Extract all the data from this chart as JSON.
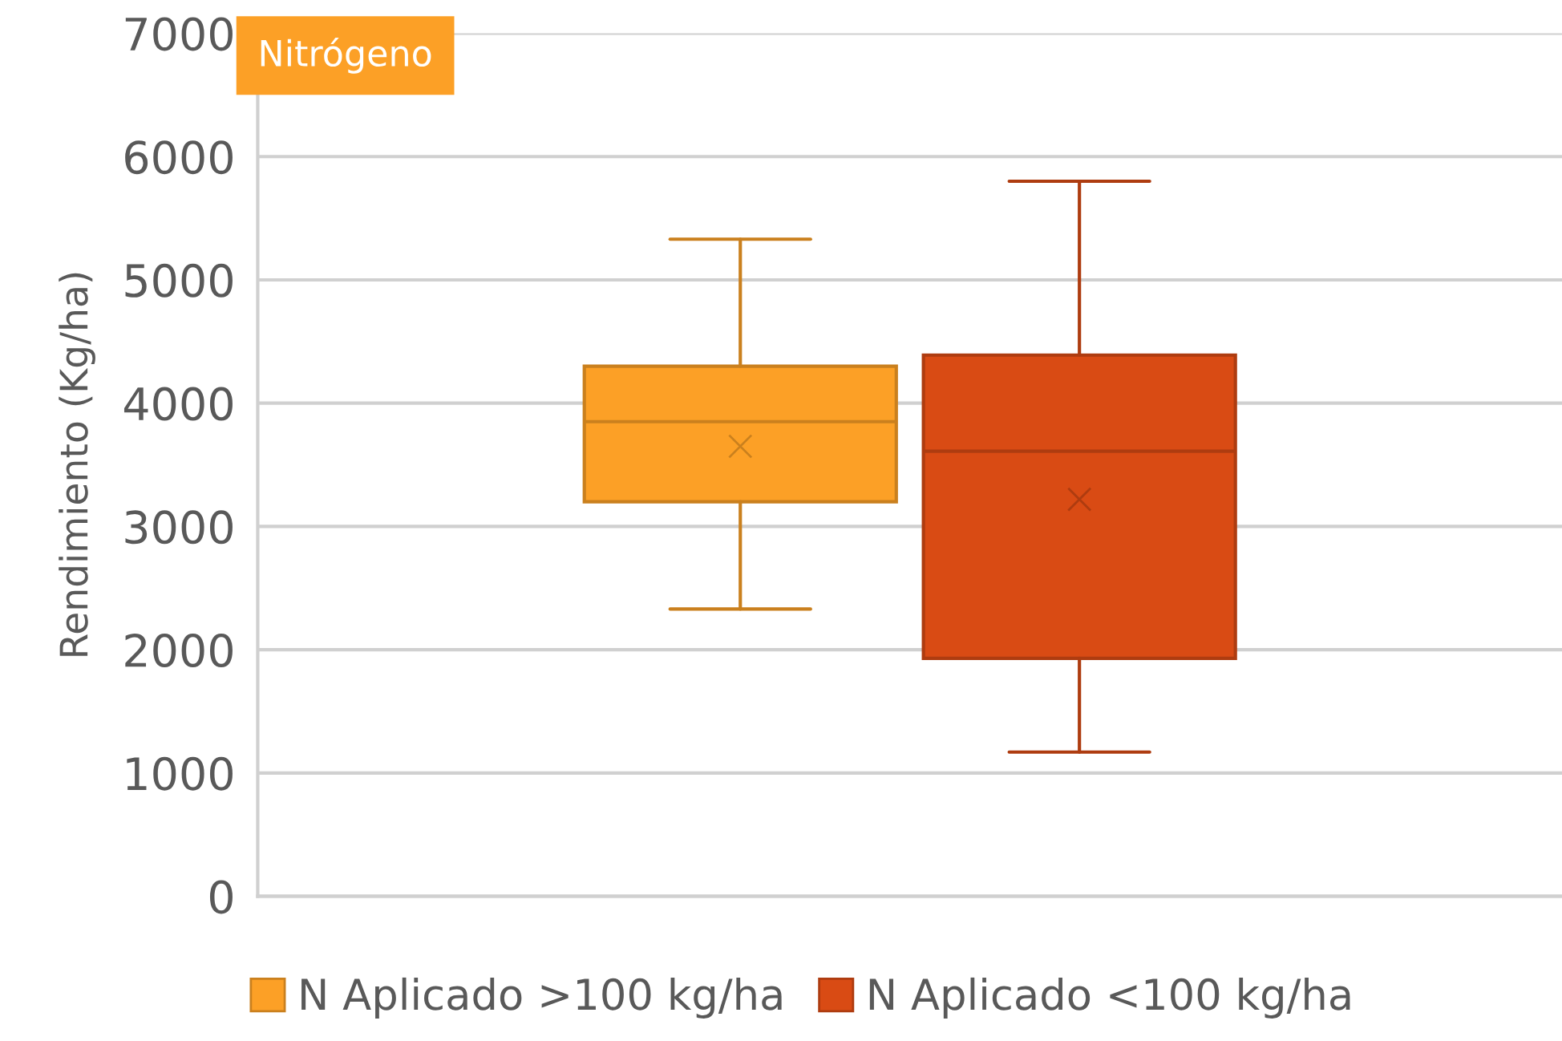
{
  "chart_data": {
    "type": "box",
    "title": "Nitrógeno",
    "ylabel": "Rendimiento (Kg/ha)",
    "categories": [
      null
    ],
    "series": [
      {
        "name": "N Aplicado >100 kg/ha",
        "color": "#fca026",
        "boxes": [
          {
            "low": 2330,
            "q1": 3200,
            "median": 3850,
            "q3": 4300,
            "high": 5330,
            "mean": 3650
          }
        ]
      },
      {
        "name": "N Aplicado <100 kg/ha",
        "color": "#d94b14",
        "boxes": [
          {
            "low": 1170,
            "q1": 1930,
            "median": 3610,
            "q3": 4390,
            "high": 5800,
            "mean": 3220
          }
        ]
      }
    ],
    "ylim": [
      0,
      7000
    ],
    "yticks": [
      0,
      1000,
      2000,
      3000,
      4000,
      5000,
      6000,
      7000
    ],
    "grid": "y",
    "legend": "bottom",
    "tick_labels": "y"
  }
}
